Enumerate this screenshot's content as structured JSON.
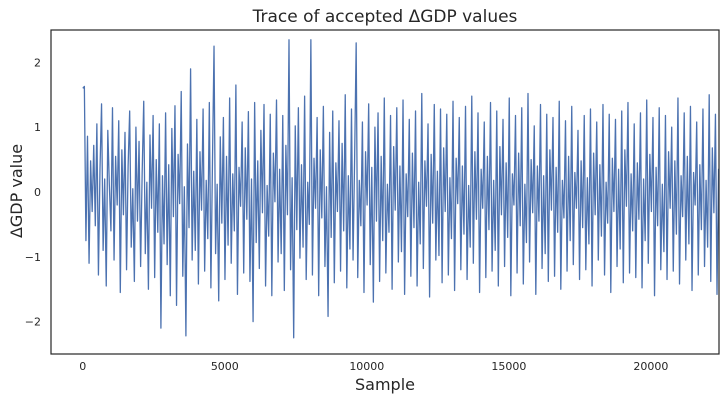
{
  "chart_data": {
    "type": "line",
    "title": "Trace of accepted ΔGDP values",
    "xlabel": "Sample",
    "ylabel": "ΔGDP value",
    "xlim": [
      -1120,
      22400
    ],
    "ylim": [
      -2.5,
      2.5
    ],
    "grid": false,
    "legend": "none",
    "series_color": "#4c72b0",
    "xticks": [
      0,
      5000,
      10000,
      15000,
      20000
    ],
    "xtick_labels": [
      "0",
      "5000",
      "10000",
      "15000",
      "20000"
    ],
    "yticks": [
      -2,
      -1,
      0,
      1,
      2
    ],
    "ytick_labels": [
      "−2",
      "−1",
      "0",
      "1",
      "2"
    ],
    "series": [
      {
        "n_samples": 22400,
        "x_step": 55,
        "values": [
          1.6,
          1.63,
          -0.75,
          0.86,
          -1.1,
          0.48,
          -0.3,
          0.72,
          -0.52,
          1.05,
          -1.28,
          0.35,
          1.36,
          -0.9,
          0.2,
          -1.45,
          0.95,
          0.1,
          -0.6,
          1.3,
          -1.05,
          0.55,
          -0.2,
          1.1,
          -1.55,
          0.65,
          -0.35,
          0.92,
          -1.2,
          0.4,
          1.25,
          -0.85,
          0.05,
          -1.38,
          1.0,
          -0.45,
          0.78,
          -1.15,
          0.3,
          1.4,
          -0.95,
          0.15,
          -1.5,
          0.88,
          -0.25,
          1.18,
          -1.32,
          0.5,
          -0.62,
          1.05,
          -2.1,
          0.25,
          -0.8,
          1.22,
          -1.12,
          0.42,
          -1.6,
          0.98,
          -0.38,
          1.33,
          -1.75,
          0.58,
          -0.18,
          1.55,
          -1.3,
          0.08,
          -2.22,
          0.74,
          -0.55,
          1.9,
          -1.05,
          0.32,
          -0.9,
          1.12,
          -1.42,
          0.62,
          -0.28,
          1.28,
          -1.22,
          0.18,
          -0.72,
          1.38,
          -1.48,
          0.45,
          2.25,
          -0.95,
          0.12,
          -1.68,
          0.85,
          -0.48,
          1.15,
          -1.35,
          0.55,
          -0.82,
          1.45,
          -1.1,
          0.28,
          -0.6,
          1.65,
          -1.58,
          0.38,
          -0.22,
          1.08,
          -1.25,
          0.68,
          -0.42,
          1.24,
          -1.38,
          0.2,
          -2.0,
          1.38,
          -0.78,
          0.48,
          -1.18,
          0.95,
          -0.32,
          1.35,
          -1.45,
          0.1,
          -0.68,
          1.2,
          -1.6,
          0.6,
          -0.15,
          1.42,
          -1.08,
          0.35,
          -0.95,
          1.18,
          -1.52,
          0.72,
          -0.35,
          2.35,
          -1.2,
          0.22,
          -2.25,
          1.02,
          -0.58,
          1.3,
          -1.02,
          0.42,
          -0.85,
          1.48,
          -1.35,
          0.15,
          -0.5,
          2.35,
          -1.28,
          0.52,
          -0.25,
          1.15,
          -1.6,
          0.65,
          -0.4,
          1.32,
          -1.15,
          0.08,
          -1.92,
          0.92,
          -0.7,
          1.25,
          -1.4,
          0.45,
          -0.3,
          1.1,
          -1.22,
          0.75,
          -0.6,
          1.5,
          -1.48,
          0.25,
          -0.88,
          1.28,
          -1.05,
          0.5,
          2.3,
          -1.32,
          0.18,
          -0.52,
          1.08,
          -1.55,
          0.62,
          -0.2,
          1.36,
          -1.12,
          0.38,
          -1.7,
          1.0,
          -0.45,
          1.22,
          -1.38,
          0.55,
          -0.75,
          1.45,
          -1.25,
          0.12,
          -0.62,
          1.18,
          -1.5,
          0.7,
          -0.28,
          1.3,
          -1.08,
          0.4,
          -0.92,
          1.42,
          -1.58,
          0.28,
          -0.38,
          1.12,
          -1.3,
          0.6,
          -0.55,
          1.25,
          -1.45,
          0.15,
          -0.8,
          1.52,
          -1.18,
          0.48,
          -0.22,
          1.05,
          -1.62,
          0.58,
          -0.48,
          1.35,
          -1.05,
          0.32,
          -0.98,
          1.28,
          -1.4,
          0.68,
          -0.3,
          1.2,
          -1.28,
          0.22,
          -0.72,
          1.4,
          -1.52,
          0.52,
          -0.18,
          1.15,
          -1.2,
          0.4,
          -0.65,
          1.32,
          -1.35,
          0.1,
          -0.85,
          1.48,
          -1.1,
          0.62,
          -0.42,
          1.22,
          -1.55,
          0.35,
          -0.25,
          1.08,
          -1.32,
          0.55,
          -0.58,
          1.38,
          -1.22,
          0.18,
          -0.9,
          1.25,
          -1.45,
          0.7,
          -0.35,
          1.12,
          -1.15,
          0.45,
          -0.7,
          1.45,
          -1.6,
          0.28,
          -0.2,
          1.18,
          -1.25,
          0.6,
          -0.52,
          1.3,
          -1.42,
          0.12,
          -0.78,
          1.52,
          -1.08,
          0.5,
          -0.32,
          1.02,
          -1.58,
          0.4,
          -0.45,
          1.35,
          -1.18,
          0.25,
          -0.95,
          1.2,
          -1.38,
          0.65,
          -0.28,
          1.15,
          -1.3,
          0.38,
          -0.62,
          1.4,
          -1.5,
          0.18,
          -0.4,
          1.1,
          -1.22,
          0.55,
          -0.75,
          1.32,
          -1.12,
          0.3,
          -0.25,
          0.95,
          -1.35,
          0.48,
          -0.55,
          1.18,
          -1.2,
          0.22,
          -0.8,
          1.28,
          -1.45,
          0.6,
          -0.35,
          1.08,
          -1.05,
          0.42,
          -0.68,
          1.35,
          -1.28,
          0.15,
          -0.48,
          1.2,
          -1.55,
          0.52,
          -0.3,
          1.12,
          -1.15,
          0.35,
          -0.88,
          1.25,
          -1.4,
          0.65,
          -0.22,
          1.38,
          -1.25,
          0.28,
          -0.6,
          1.05,
          -1.32,
          0.45,
          -0.42,
          1.22,
          -1.48,
          0.2,
          -0.75,
          1.42,
          -1.1,
          0.58,
          -0.3,
          1.15,
          -1.6,
          0.38,
          -0.52,
          1.3,
          -1.2,
          0.12,
          -0.92,
          1.18,
          -1.35,
          0.62,
          -0.25,
          1.0,
          -1.22,
          0.48,
          -0.65,
          1.45,
          -1.42,
          0.25,
          -0.38,
          1.22,
          -1.05,
          0.55,
          -0.8,
          1.32,
          -1.52,
          0.3,
          -0.2,
          1.08,
          -1.28,
          0.42,
          -0.58,
          1.28,
          -1.15,
          0.18,
          -0.85,
          1.5,
          -1.38,
          0.68,
          -0.32,
          1.2,
          -1.58,
          0.35,
          -0.45,
          1.12,
          -1.25,
          0.52,
          -0.72,
          1.38,
          -1.12,
          0.2,
          -0.28,
          1.05,
          -1.45,
          0.6,
          -0.55,
          1.25,
          -1.32,
          0.28,
          -0.9,
          1.42,
          -1.2,
          0.45,
          -0.35,
          1.15,
          -1.48,
          0.15,
          -0.62,
          1.3,
          -1.08,
          0.58,
          -0.25,
          1.22,
          -1.55,
          0.4,
          -0.78,
          1.35,
          -1.28,
          0.22,
          -0.48,
          1.1,
          -1.4,
          0.65,
          -0.38,
          1.28,
          -1.18,
          0.32,
          -0.7,
          1.45,
          -1.35,
          0.5,
          -0.22,
          1.18,
          -1.6,
          0.25,
          -0.58,
          1.3,
          -1.22,
          0.55,
          -0.85,
          1.2,
          -1.42,
          0.38,
          -0.3,
          1.12,
          -1.12,
          0.18,
          -0.65,
          1.38,
          -1.5,
          0.62,
          -0.42,
          1.25,
          -1.28,
          0.3,
          -0.75,
          0.95,
          -1.1,
          1.05,
          -0.6,
          0.82,
          -1.3,
          0.45,
          -0.2,
          0.9
        ]
      }
    ]
  }
}
